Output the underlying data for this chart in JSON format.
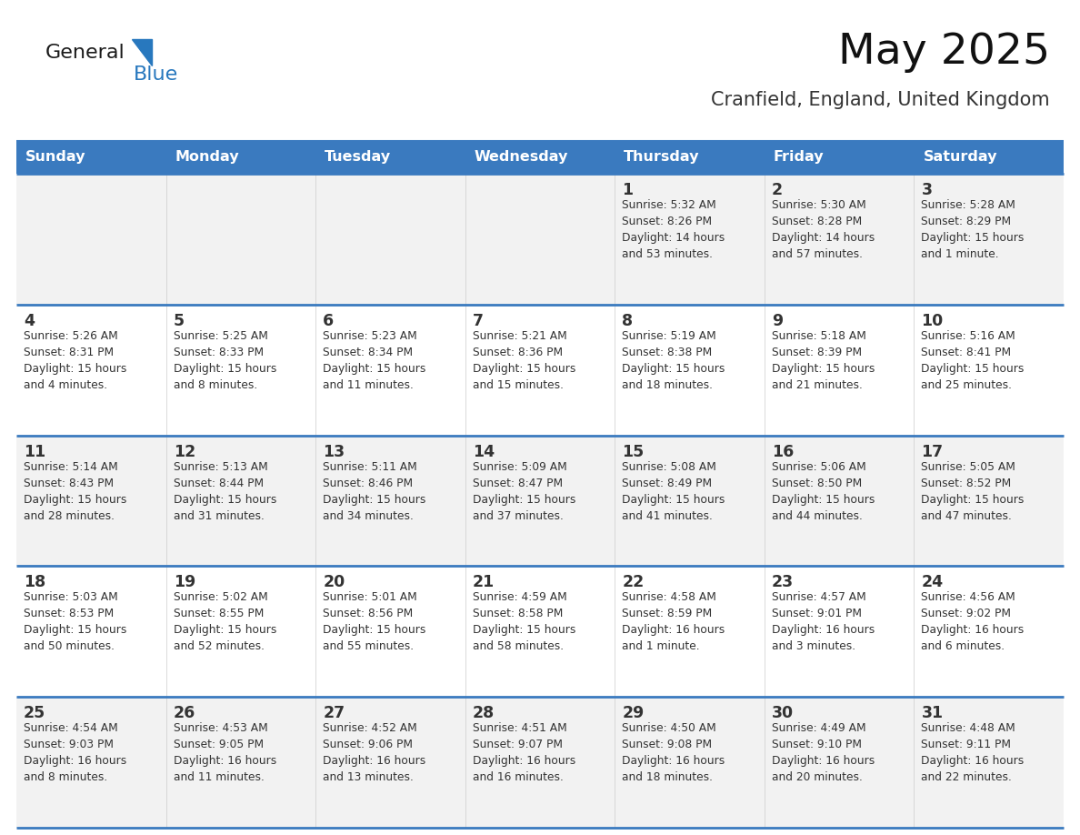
{
  "title": "May 2025",
  "subtitle": "Cranfield, England, United Kingdom",
  "header_bg": "#3a7abf",
  "header_text": "#ffffff",
  "row_bg_0": "#f2f2f2",
  "row_bg_1": "#ffffff",
  "row_bg_2": "#f2f2f2",
  "row_bg_3": "#ffffff",
  "row_bg_4": "#f2f2f2",
  "border_color": "#3a7abf",
  "day_num_color": "#333333",
  "info_color": "#333333",
  "text_color": "#333333",
  "days_of_week": [
    "Sunday",
    "Monday",
    "Tuesday",
    "Wednesday",
    "Thursday",
    "Friday",
    "Saturday"
  ],
  "calendar_data": [
    [
      {
        "day": "",
        "info": ""
      },
      {
        "day": "",
        "info": ""
      },
      {
        "day": "",
        "info": ""
      },
      {
        "day": "",
        "info": ""
      },
      {
        "day": "1",
        "info": "Sunrise: 5:32 AM\nSunset: 8:26 PM\nDaylight: 14 hours\nand 53 minutes."
      },
      {
        "day": "2",
        "info": "Sunrise: 5:30 AM\nSunset: 8:28 PM\nDaylight: 14 hours\nand 57 minutes."
      },
      {
        "day": "3",
        "info": "Sunrise: 5:28 AM\nSunset: 8:29 PM\nDaylight: 15 hours\nand 1 minute."
      }
    ],
    [
      {
        "day": "4",
        "info": "Sunrise: 5:26 AM\nSunset: 8:31 PM\nDaylight: 15 hours\nand 4 minutes."
      },
      {
        "day": "5",
        "info": "Sunrise: 5:25 AM\nSunset: 8:33 PM\nDaylight: 15 hours\nand 8 minutes."
      },
      {
        "day": "6",
        "info": "Sunrise: 5:23 AM\nSunset: 8:34 PM\nDaylight: 15 hours\nand 11 minutes."
      },
      {
        "day": "7",
        "info": "Sunrise: 5:21 AM\nSunset: 8:36 PM\nDaylight: 15 hours\nand 15 minutes."
      },
      {
        "day": "8",
        "info": "Sunrise: 5:19 AM\nSunset: 8:38 PM\nDaylight: 15 hours\nand 18 minutes."
      },
      {
        "day": "9",
        "info": "Sunrise: 5:18 AM\nSunset: 8:39 PM\nDaylight: 15 hours\nand 21 minutes."
      },
      {
        "day": "10",
        "info": "Sunrise: 5:16 AM\nSunset: 8:41 PM\nDaylight: 15 hours\nand 25 minutes."
      }
    ],
    [
      {
        "day": "11",
        "info": "Sunrise: 5:14 AM\nSunset: 8:43 PM\nDaylight: 15 hours\nand 28 minutes."
      },
      {
        "day": "12",
        "info": "Sunrise: 5:13 AM\nSunset: 8:44 PM\nDaylight: 15 hours\nand 31 minutes."
      },
      {
        "day": "13",
        "info": "Sunrise: 5:11 AM\nSunset: 8:46 PM\nDaylight: 15 hours\nand 34 minutes."
      },
      {
        "day": "14",
        "info": "Sunrise: 5:09 AM\nSunset: 8:47 PM\nDaylight: 15 hours\nand 37 minutes."
      },
      {
        "day": "15",
        "info": "Sunrise: 5:08 AM\nSunset: 8:49 PM\nDaylight: 15 hours\nand 41 minutes."
      },
      {
        "day": "16",
        "info": "Sunrise: 5:06 AM\nSunset: 8:50 PM\nDaylight: 15 hours\nand 44 minutes."
      },
      {
        "day": "17",
        "info": "Sunrise: 5:05 AM\nSunset: 8:52 PM\nDaylight: 15 hours\nand 47 minutes."
      }
    ],
    [
      {
        "day": "18",
        "info": "Sunrise: 5:03 AM\nSunset: 8:53 PM\nDaylight: 15 hours\nand 50 minutes."
      },
      {
        "day": "19",
        "info": "Sunrise: 5:02 AM\nSunset: 8:55 PM\nDaylight: 15 hours\nand 52 minutes."
      },
      {
        "day": "20",
        "info": "Sunrise: 5:01 AM\nSunset: 8:56 PM\nDaylight: 15 hours\nand 55 minutes."
      },
      {
        "day": "21",
        "info": "Sunrise: 4:59 AM\nSunset: 8:58 PM\nDaylight: 15 hours\nand 58 minutes."
      },
      {
        "day": "22",
        "info": "Sunrise: 4:58 AM\nSunset: 8:59 PM\nDaylight: 16 hours\nand 1 minute."
      },
      {
        "day": "23",
        "info": "Sunrise: 4:57 AM\nSunset: 9:01 PM\nDaylight: 16 hours\nand 3 minutes."
      },
      {
        "day": "24",
        "info": "Sunrise: 4:56 AM\nSunset: 9:02 PM\nDaylight: 16 hours\nand 6 minutes."
      }
    ],
    [
      {
        "day": "25",
        "info": "Sunrise: 4:54 AM\nSunset: 9:03 PM\nDaylight: 16 hours\nand 8 minutes."
      },
      {
        "day": "26",
        "info": "Sunrise: 4:53 AM\nSunset: 9:05 PM\nDaylight: 16 hours\nand 11 minutes."
      },
      {
        "day": "27",
        "info": "Sunrise: 4:52 AM\nSunset: 9:06 PM\nDaylight: 16 hours\nand 13 minutes."
      },
      {
        "day": "28",
        "info": "Sunrise: 4:51 AM\nSunset: 9:07 PM\nDaylight: 16 hours\nand 16 minutes."
      },
      {
        "day": "29",
        "info": "Sunrise: 4:50 AM\nSunset: 9:08 PM\nDaylight: 16 hours\nand 18 minutes."
      },
      {
        "day": "30",
        "info": "Sunrise: 4:49 AM\nSunset: 9:10 PM\nDaylight: 16 hours\nand 20 minutes."
      },
      {
        "day": "31",
        "info": "Sunrise: 4:48 AM\nSunset: 9:11 PM\nDaylight: 16 hours\nand 22 minutes."
      }
    ]
  ],
  "logo_general_color": "#1a1a1a",
  "logo_blue_color": "#2878be",
  "logo_triangle_color": "#2878be"
}
